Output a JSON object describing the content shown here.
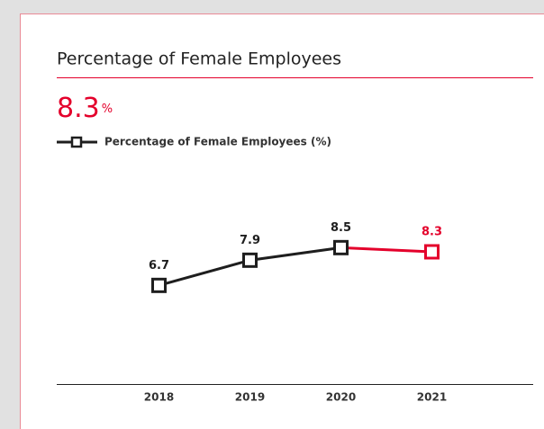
{
  "chart_data": {
    "type": "line",
    "title": "Percentage of Female Employees",
    "headline": {
      "value": 8.3,
      "unit": "%"
    },
    "categories": [
      "2018",
      "2019",
      "2020",
      "2021"
    ],
    "series": [
      {
        "name": "Percentage of Female Employees (%)",
        "color": "#1e1e1e",
        "values": [
          6.7,
          7.9,
          8.5,
          8.3
        ]
      }
    ],
    "highlight_color": "#e4002b",
    "ylim": [
      2,
      9.5
    ]
  }
}
